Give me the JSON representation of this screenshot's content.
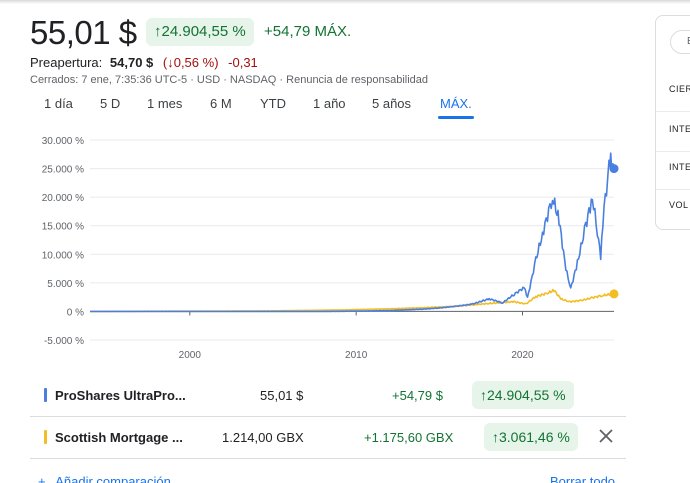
{
  "quote": {
    "price": "55,01 $",
    "pct_chip": "↑24.904,55 %",
    "abs_change": "+54,79 MÁX."
  },
  "preopen": {
    "label": "Preapertura:",
    "price": "54,70 $",
    "pct": "(↓0,56 %)",
    "change": "-0,31"
  },
  "status_line": "Cerrados: 7 ene, 7:35:36 UTC-5 · USD · NASDAQ · Renuncia de responsabilidad",
  "tabs": [
    "1 día",
    "5 D",
    "1 mes",
    "6 M",
    "YTD",
    "1 año",
    "5 años",
    "MÁX."
  ],
  "active_tab": "MÁX.",
  "colors": {
    "series1": "#4a7fe0",
    "series2": "#f2bd25",
    "positive": "#137333",
    "negative": "#a50e0e",
    "accent": "#1a73e8"
  },
  "comparison": [
    {
      "name": "ProShares UltraPro...",
      "value": "55,01 $",
      "change": "+54,79 $",
      "pct": "↑24.904,55 %",
      "color": "#4a7fe0"
    },
    {
      "name": "Scottish Mortgage ...",
      "value": "1.214,00 GBX",
      "change": "+1.175,60 GBX",
      "pct": "↑3.061,46 %",
      "color": "#f2bd25"
    }
  ],
  "links": {
    "add": "Añadir comparación",
    "clear": "Borrar todo"
  },
  "side_panel": {
    "pill": "ET",
    "labels": [
      "CIER",
      "INTE",
      "INTE",
      "VOL"
    ]
  },
  "chart_data": {
    "type": "line",
    "x_ticks": [
      2000,
      2010,
      2020
    ],
    "y_ticks": [
      "30.000 %",
      "25.000 %",
      "20.000 %",
      "15.000 %",
      "10.000 %",
      "5.000 %",
      "0 %",
      "-5.000 %"
    ],
    "y_tick_values": [
      30000,
      25000,
      20000,
      15000,
      10000,
      5000,
      0,
      -5000
    ],
    "ylim": [
      -5000,
      30000
    ],
    "xlim": [
      1994,
      2025.5
    ],
    "series": [
      {
        "name": "ProShares UltraPro...",
        "color": "#4a7fe0",
        "points": [
          [
            1994,
            0
          ],
          [
            2008,
            0
          ],
          [
            2010,
            50
          ],
          [
            2012,
            150
          ],
          [
            2014,
            400
          ],
          [
            2015,
            600
          ],
          [
            2016,
            900
          ],
          [
            2017,
            1300
          ],
          [
            2018,
            2200
          ],
          [
            2018.8,
            1500
          ],
          [
            2019.5,
            3000
          ],
          [
            2020.1,
            4200
          ],
          [
            2020.3,
            2400
          ],
          [
            2020.8,
            9000
          ],
          [
            2021.2,
            13500
          ],
          [
            2021.8,
            20000
          ],
          [
            2022.2,
            16000
          ],
          [
            2022.6,
            7500
          ],
          [
            2022.9,
            4000
          ],
          [
            2023.3,
            8500
          ],
          [
            2023.8,
            15000
          ],
          [
            2024.2,
            20000
          ],
          [
            2024.5,
            14000
          ],
          [
            2024.7,
            9500
          ],
          [
            2024.9,
            18000
          ],
          [
            2025.2,
            25000
          ],
          [
            2025.3,
            26500
          ],
          [
            2025.5,
            25000
          ]
        ]
      },
      {
        "name": "Scottish Mortgage ...",
        "color": "#f2bd25",
        "points": [
          [
            1994,
            0
          ],
          [
            2005,
            100
          ],
          [
            2009,
            250
          ],
          [
            2012,
            450
          ],
          [
            2014,
            650
          ],
          [
            2016,
            900
          ],
          [
            2018,
            1400
          ],
          [
            2019.5,
            1700
          ],
          [
            2020.2,
            1300
          ],
          [
            2020.8,
            2600
          ],
          [
            2021.5,
            3200
          ],
          [
            2021.9,
            3700
          ],
          [
            2022.3,
            2200
          ],
          [
            2022.8,
            1700
          ],
          [
            2023.5,
            1900
          ],
          [
            2024.2,
            2400
          ],
          [
            2024.8,
            2800
          ],
          [
            2025.5,
            3061
          ]
        ]
      }
    ],
    "end_markers": true
  }
}
